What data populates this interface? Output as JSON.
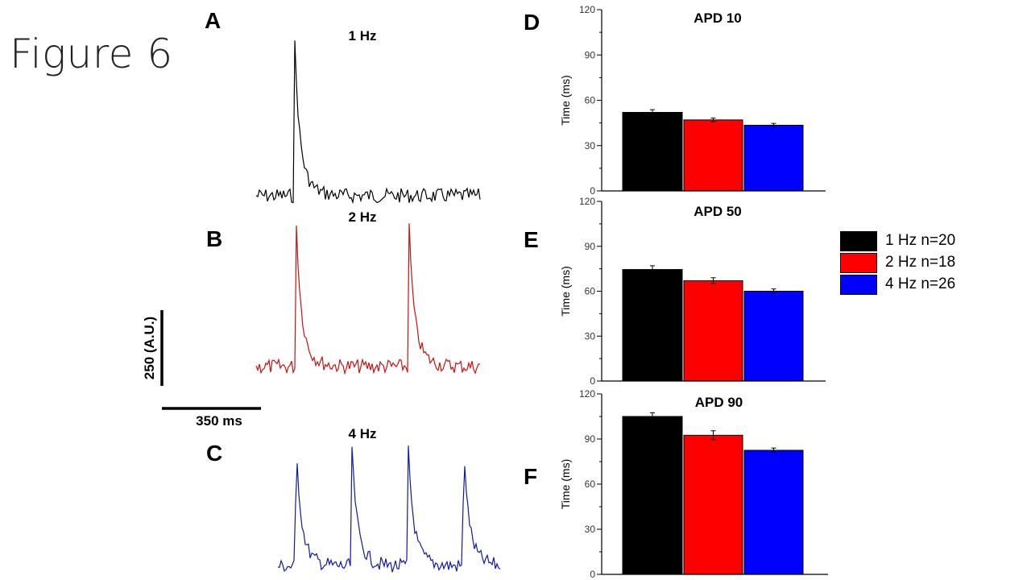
{
  "figure_title": "Figure 6",
  "panels": {
    "A": "A",
    "B": "B",
    "C": "C",
    "D": "D",
    "E": "E",
    "F": "F"
  },
  "colors": {
    "hz1": "#000000",
    "hz2": "#cc1010",
    "hz4": "#101a9e"
  },
  "traces": [
    {
      "label": "1 Hz",
      "color": "#000000",
      "rate_hz": 1
    },
    {
      "label": "2 Hz",
      "color": "#cc1010",
      "rate_hz": 2
    },
    {
      "label": "4 Hz",
      "color": "#101a9e",
      "rate_hz": 4
    }
  ],
  "scale_bar": {
    "amplitude_label": "250 (A.U.)",
    "time_label": "350 ms"
  },
  "legend": [
    {
      "label": "1 Hz n=20",
      "color": "#000000"
    },
    {
      "label": "2 Hz n=18",
      "color": "#ff0000"
    },
    {
      "label": "4 Hz n=26",
      "color": "#0000ff"
    }
  ],
  "chart_data": [
    {
      "type": "bar",
      "title": "APD 10",
      "ylabel": "Time (ms)",
      "xlabel": "",
      "ylim": [
        0,
        120
      ],
      "yticks": [
        0,
        30,
        60,
        90,
        120
      ],
      "categories": [
        "1 Hz n=20",
        "2 Hz n=18",
        "4 Hz n=26"
      ],
      "values": [
        52,
        47,
        43.5
      ],
      "errors": [
        1.8,
        1.2,
        1.2
      ],
      "colors": [
        "#000000",
        "#ff0000",
        "#0000ff"
      ]
    },
    {
      "type": "bar",
      "title": "APD 50",
      "ylabel": "Time (ms)",
      "xlabel": "",
      "ylim": [
        0,
        120
      ],
      "yticks": [
        0,
        30,
        60,
        90,
        120
      ],
      "categories": [
        "1 Hz n=20",
        "2 Hz n=18",
        "4 Hz n=26"
      ],
      "values": [
        74.5,
        67,
        60
      ],
      "errors": [
        2.5,
        2,
        1.5
      ],
      "colors": [
        "#000000",
        "#ff0000",
        "#0000ff"
      ]
    },
    {
      "type": "bar",
      "title": "APD 90",
      "ylabel": "Time (ms)",
      "xlabel": "",
      "ylim": [
        0,
        120
      ],
      "yticks": [
        0,
        30,
        60,
        90,
        120
      ],
      "categories": [
        "1 Hz n=20",
        "2 Hz n=18",
        "4 Hz n=26"
      ],
      "values": [
        105,
        92.5,
        82.5
      ],
      "errors": [
        2.5,
        3,
        1.5
      ],
      "colors": [
        "#000000",
        "#ff0000",
        "#0000ff"
      ]
    }
  ]
}
